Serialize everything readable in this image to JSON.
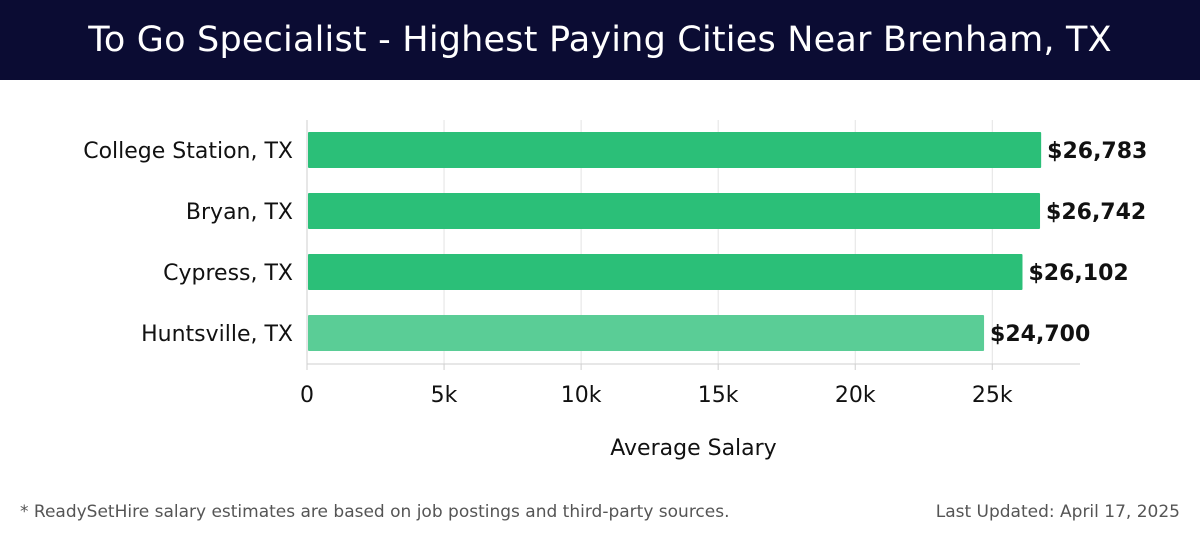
{
  "header": {
    "title": "To Go Specialist - Highest Paying Cities Near Brenham, TX"
  },
  "chart_data": {
    "type": "bar",
    "orientation": "horizontal",
    "categories": [
      "College Station, TX",
      "Bryan, TX",
      "Cypress, TX",
      "Huntsville, TX"
    ],
    "values": [
      26783,
      26742,
      26102,
      24700
    ],
    "value_labels": [
      "$26,783",
      "$26,742",
      "$26,102",
      "$24,700"
    ],
    "xlabel": "Average Salary",
    "ylabel": "",
    "xlim": [
      0,
      28200
    ],
    "x_ticks": [
      0,
      5000,
      10000,
      15000,
      20000,
      25000
    ],
    "x_tick_labels": [
      "0",
      "5k",
      "10k",
      "15k",
      "20k",
      "25k"
    ],
    "grid": true,
    "bar_colors": [
      "#2bbf78",
      "#2bbf78",
      "#2bbf78",
      "#5acd96"
    ]
  },
  "footer": {
    "note": "* ReadySetHire salary estimates are based on job postings and third-party sources.",
    "updated": "Last Updated: April 17, 2025"
  }
}
